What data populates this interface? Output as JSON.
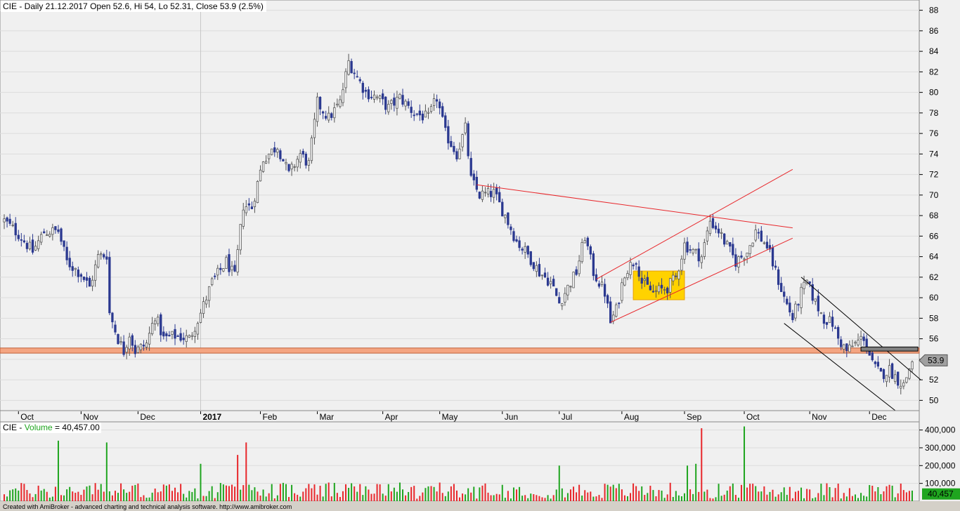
{
  "app": {
    "footer": "Created with AmiBroker - advanced charting and technical analysis software. http://www.amibroker.com"
  },
  "price_pane": {
    "title": "CIE - Daily 21.12.2017 Open 52.6, Hi 54, Lo 52.31, Close 53.9 (2.5%)",
    "last_value_label": "53.9"
  },
  "volume_pane": {
    "title_symbol": "CIE",
    "title_dash": " - ",
    "title_name": "Volume",
    "title_value": " = 40,457.00",
    "last_value_label": "40,457"
  },
  "colors": {
    "pane_bg": "#f0f0f0",
    "up_candle": "#ffffff",
    "down_candle": "#2b3990",
    "volume_up": "#1fa51f",
    "volume_down": "#e8272b",
    "trendline_red": "#e8272b",
    "support_band": "#f4a582",
    "rect_fill": "#ffd200",
    "channel_black": "#000000"
  },
  "chart_data": [
    {
      "type": "candlestick",
      "title": "CIE - Daily 21.12.2017 Open 52.6, Hi 54, Lo 52.31, Close 53.9 (2.5%)",
      "ylim": [
        49,
        89
      ],
      "y_ticks": [
        50,
        52,
        54,
        56,
        58,
        60,
        62,
        64,
        66,
        68,
        70,
        72,
        74,
        76,
        78,
        80,
        82,
        84,
        86,
        88
      ],
      "x_tick_labels": [
        "Oct",
        "Nov",
        "Dec",
        "2017",
        "Feb",
        "Mar",
        "Apr",
        "May",
        "Jun",
        "Jul",
        "Aug",
        "Sep",
        "Oct",
        "Nov",
        "Dec"
      ],
      "x_tick_bar_index": [
        5,
        27,
        47,
        69,
        90,
        110,
        133,
        153,
        175,
        195,
        217,
        239,
        260,
        283,
        304
      ],
      "bars": 320,
      "price_path": [
        [
          0,
          67.5
        ],
        [
          5,
          66.2
        ],
        [
          10,
          64.5
        ],
        [
          14,
          66.4
        ],
        [
          19,
          66.5
        ],
        [
          22,
          63.5
        ],
        [
          27,
          62.3
        ],
        [
          30,
          61.0
        ],
        [
          33,
          64.0
        ],
        [
          36,
          64.2
        ],
        [
          37,
          58.5
        ],
        [
          40,
          56.0
        ],
        [
          42,
          54.8
        ],
        [
          44,
          56.5
        ],
        [
          46,
          54.8
        ],
        [
          50,
          55.5
        ],
        [
          53,
          58.3
        ],
        [
          56,
          56.0
        ],
        [
          60,
          56.3
        ],
        [
          65,
          56.0
        ],
        [
          69,
          58.5
        ],
        [
          73,
          61.5
        ],
        [
          78,
          63.5
        ],
        [
          81,
          62.0
        ],
        [
          84,
          69.0
        ],
        [
          87,
          68.8
        ],
        [
          91,
          73.5
        ],
        [
          96,
          74.8
        ],
        [
          100,
          72.0
        ],
        [
          104,
          74.0
        ],
        [
          107,
          73.0
        ],
        [
          110,
          79.0
        ],
        [
          114,
          77.5
        ],
        [
          118,
          79.0
        ],
        [
          121,
          83.0
        ],
        [
          124,
          81.5
        ],
        [
          127,
          80.0
        ],
        [
          131,
          79.5
        ],
        [
          135,
          78.5
        ],
        [
          139,
          79.5
        ],
        [
          144,
          78.0
        ],
        [
          149,
          77.5
        ],
        [
          152,
          79.5
        ],
        [
          155,
          76.0
        ],
        [
          159,
          74.0
        ],
        [
          162,
          76.5
        ],
        [
          164,
          71.5
        ],
        [
          167,
          70.0
        ],
        [
          172,
          70.2
        ],
        [
          176,
          68.0
        ],
        [
          180,
          65.5
        ],
        [
          184,
          64.2
        ],
        [
          188,
          62.5
        ],
        [
          192,
          61.5
        ],
        [
          195,
          59.5
        ],
        [
          198,
          61.0
        ],
        [
          201,
          62.5
        ],
        [
          204,
          66.0
        ],
        [
          207,
          62.5
        ],
        [
          211,
          60.5
        ],
        [
          213,
          57.6
        ],
        [
          215,
          58.8
        ],
        [
          218,
          62.5
        ],
        [
          222,
          63.8
        ],
        [
          224,
          61.5
        ],
        [
          228,
          60.5
        ],
        [
          233,
          61.0
        ],
        [
          236,
          62.0
        ],
        [
          239,
          65.2
        ],
        [
          242,
          64.5
        ],
        [
          245,
          64.0
        ],
        [
          248,
          67.5
        ],
        [
          251,
          66.5
        ],
        [
          254,
          65.0
        ],
        [
          257,
          63.5
        ],
        [
          261,
          64.5
        ],
        [
          264,
          66.5
        ],
        [
          268,
          65.0
        ],
        [
          271,
          62.5
        ],
        [
          274,
          60.0
        ],
        [
          277,
          58.0
        ],
        [
          280,
          60.5
        ],
        [
          282,
          61.5
        ],
        [
          285,
          59.5
        ],
        [
          288,
          58.0
        ],
        [
          291,
          57.5
        ],
        [
          293,
          56.0
        ],
        [
          296,
          54.8
        ],
        [
          299,
          55.5
        ],
        [
          302,
          56.2
        ],
        [
          305,
          53.5
        ],
        [
          308,
          52.5
        ],
        [
          311,
          53.0
        ],
        [
          314,
          52.0
        ],
        [
          316,
          51.5
        ],
        [
          319,
          53.9
        ]
      ],
      "annotations": [
        {
          "type": "line",
          "color": "trendline_red",
          "from": [
            166,
            71.0
          ],
          "to": [
            277,
            66.8
          ]
        },
        {
          "type": "line",
          "color": "trendline_red",
          "from": [
            208,
            61.8
          ],
          "to": [
            277,
            72.5
          ]
        },
        {
          "type": "line",
          "color": "trendline_red",
          "from": [
            213,
            57.6
          ],
          "to": [
            277,
            65.8
          ]
        },
        {
          "type": "line",
          "color": "channel_black",
          "from": [
            280,
            62.0
          ],
          "to": [
            322,
            52.0
          ]
        },
        {
          "type": "line",
          "color": "channel_black",
          "from": [
            274,
            57.5
          ],
          "to": [
            314,
            48.8
          ]
        },
        {
          "type": "band",
          "color": "support_band",
          "y1": 54.6,
          "y2": 55.1
        },
        {
          "type": "rect",
          "color": "rect_fill",
          "from": [
            221,
            59.8
          ],
          "to": [
            239,
            62.6
          ]
        },
        {
          "type": "rect",
          "color": "channel_black",
          "from": [
            301,
            54.8
          ],
          "to": [
            321,
            55.2
          ]
        }
      ]
    },
    {
      "type": "bar",
      "title": "CIE - Volume = 40,457.00",
      "ylim": [
        0,
        430000
      ],
      "y_ticks": [
        100000,
        200000,
        300000,
        400000
      ],
      "y_tick_labels": [
        "100,000",
        "200,000",
        "300,000",
        "400,000"
      ],
      "spikes": [
        [
          19,
          340000
        ],
        [
          36,
          330000
        ],
        [
          69,
          210000
        ],
        [
          82,
          260000
        ],
        [
          85,
          330000
        ],
        [
          195,
          200000
        ],
        [
          245,
          410000
        ],
        [
          260,
          420000
        ],
        [
          240,
          200000
        ],
        [
          243,
          210000
        ]
      ],
      "base_volume": 70000
    }
  ]
}
